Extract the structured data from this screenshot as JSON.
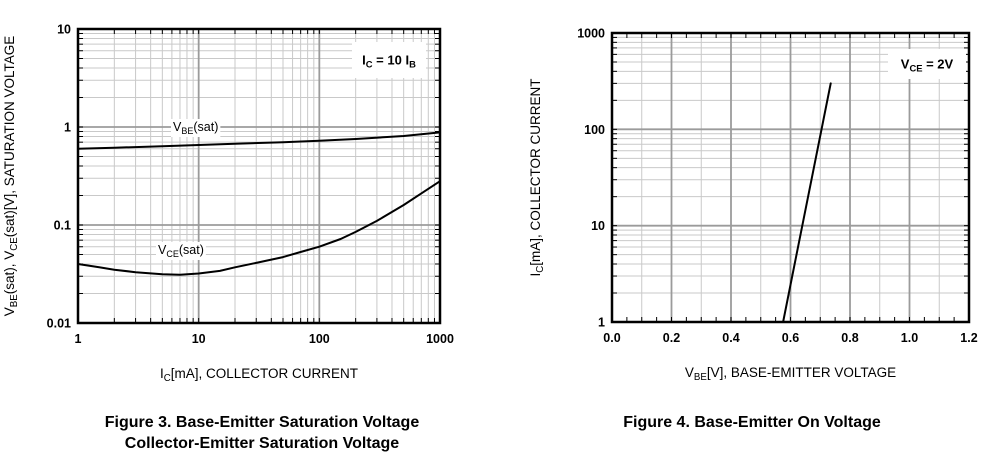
{
  "page": {
    "background": "#ffffff",
    "colors": {
      "grid_minor": "#c9c9c9",
      "grid_major": "#9b9b9b",
      "axis_frame": "#000000",
      "curve": "#000000",
      "text": "#000000",
      "annotation_bg": "#ffffff"
    }
  },
  "chart_data": [
    {
      "type": "line",
      "caption": [
        "Figure 3. Base-Emitter Saturation Voltage",
        "Collector-Emitter Saturation Voltage"
      ],
      "annotation": {
        "text": "IC = 10 IB",
        "rich": [
          {
            "t": "I"
          },
          {
            "t": "C",
            "s": 1
          },
          {
            "t": " = 10 I"
          },
          {
            "t": "B",
            "s": 1
          }
        ]
      },
      "x_axis": {
        "scale": "log",
        "min": 1,
        "max": 1000,
        "label": "IC[mA], COLLECTOR CURRENT",
        "label_rich": [
          {
            "t": "I"
          },
          {
            "t": "C",
            "s": 1
          },
          {
            "t": "[mA], COLLECTOR CURRENT"
          }
        ],
        "tick_values": [
          1,
          10,
          100,
          1000
        ],
        "tick_labels": [
          "1",
          "10",
          "100",
          "1000"
        ],
        "grid": true
      },
      "y_axis": {
        "scale": "log",
        "min": 0.01,
        "max": 10,
        "label": "VBE(sat), VCE(sat)[V], SATURATION VOLTAGE",
        "label_rich": [
          {
            "t": "V"
          },
          {
            "t": "BE",
            "s": 1
          },
          {
            "t": "(sat), V"
          },
          {
            "t": "CE",
            "s": 1
          },
          {
            "t": "(sat)[V], SATURATION VOLTAGE"
          }
        ],
        "tick_values": [
          10,
          1,
          0.1,
          0.01
        ],
        "tick_labels": [
          "10",
          "1",
          "0.1",
          "0.01"
        ],
        "grid": true
      },
      "series": [
        {
          "name": "VBE(sat)",
          "name_rich": [
            {
              "t": "V"
            },
            {
              "t": "BE",
              "s": 1
            },
            {
              "t": "(sat)"
            }
          ],
          "points": [
            [
              1,
              0.6
            ],
            [
              2,
              0.615
            ],
            [
              5,
              0.635
            ],
            [
              10,
              0.655
            ],
            [
              20,
              0.675
            ],
            [
              50,
              0.7
            ],
            [
              100,
              0.725
            ],
            [
              200,
              0.755
            ],
            [
              500,
              0.81
            ],
            [
              1000,
              0.88
            ]
          ]
        },
        {
          "name": "VCE(sat)",
          "name_rich": [
            {
              "t": "V"
            },
            {
              "t": "CE",
              "s": 1
            },
            {
              "t": "(sat)"
            }
          ],
          "points": [
            [
              1,
              0.04
            ],
            [
              1.5,
              0.037
            ],
            [
              2,
              0.035
            ],
            [
              3,
              0.033
            ],
            [
              5,
              0.0315
            ],
            [
              7,
              0.031
            ],
            [
              10,
              0.032
            ],
            [
              15,
              0.034
            ],
            [
              20,
              0.037
            ],
            [
              30,
              0.041
            ],
            [
              50,
              0.047
            ],
            [
              70,
              0.053
            ],
            [
              100,
              0.06
            ],
            [
              150,
              0.072
            ],
            [
              200,
              0.085
            ],
            [
              300,
              0.11
            ],
            [
              500,
              0.16
            ],
            [
              700,
              0.21
            ],
            [
              1000,
              0.28
            ]
          ]
        }
      ]
    },
    {
      "type": "line",
      "caption": [
        "Figure 4. Base-Emitter On Voltage"
      ],
      "annotation": {
        "text": "VCE = 2V",
        "rich": [
          {
            "t": "V"
          },
          {
            "t": "CE",
            "s": 1
          },
          {
            "t": " = 2V"
          }
        ]
      },
      "x_axis": {
        "scale": "linear",
        "min": 0,
        "max": 1.2,
        "label": "VBE[V], BASE-EMITTER VOLTAGE",
        "label_rich": [
          {
            "t": "V"
          },
          {
            "t": "BE",
            "s": 1
          },
          {
            "t": "[V], BASE-EMITTER VOLTAGE"
          }
        ],
        "tick_values": [
          0,
          0.2,
          0.4,
          0.6,
          0.8,
          1.0,
          1.2
        ],
        "tick_labels": [
          "0.0",
          "0.2",
          "0.4",
          "0.6",
          "0.8",
          "1.0",
          "1.2"
        ],
        "minor_step": 0.1,
        "edge_tick_step": 0.05,
        "grid": true
      },
      "y_axis": {
        "scale": "log",
        "min": 1,
        "max": 1000,
        "label": "IC[mA], COLLECTOR CURRENT",
        "label_rich": [
          {
            "t": "I"
          },
          {
            "t": "C",
            "s": 1
          },
          {
            "t": "[mA], COLLECTOR CURRENT"
          }
        ],
        "tick_values": [
          1000,
          100,
          10,
          1
        ],
        "tick_labels": [
          "1000",
          "100",
          "10",
          "1"
        ],
        "grid": true
      },
      "series": [
        {
          "name": "",
          "name_rich": [],
          "points": [
            [
              0.575,
              1
            ],
            [
              0.62,
              5
            ],
            [
              0.68,
              42
            ],
            [
              0.735,
              300
            ]
          ]
        }
      ]
    }
  ]
}
